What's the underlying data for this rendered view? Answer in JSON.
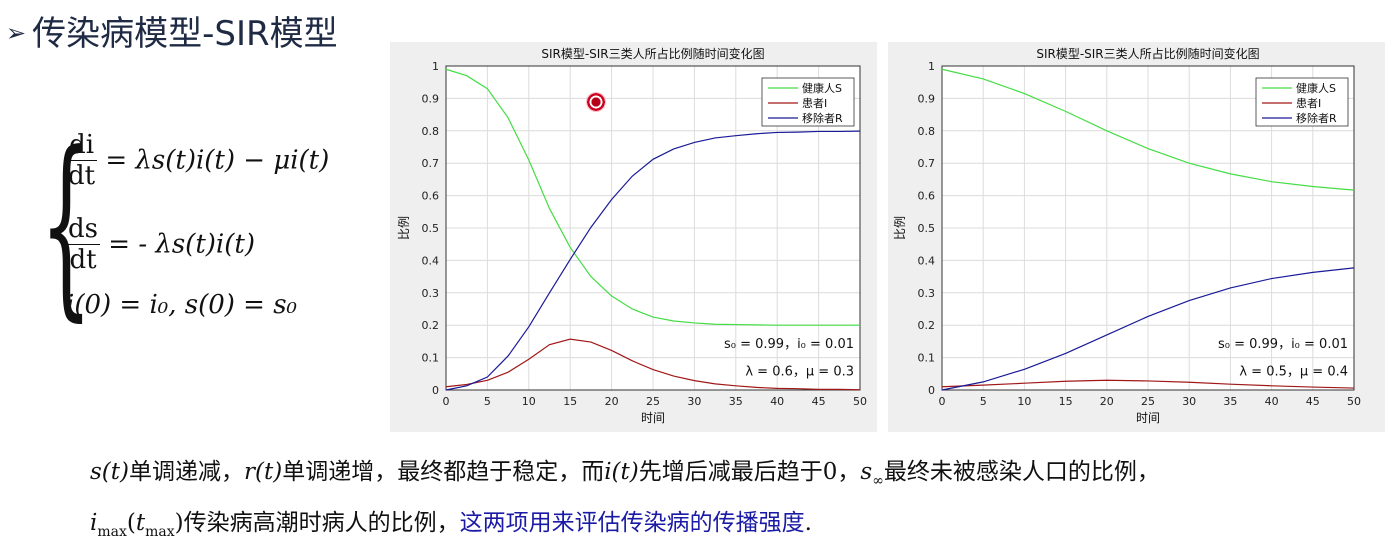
{
  "page": {
    "title": "传染病模型-SIR模型",
    "title_bullet": "➢",
    "equations": {
      "eq1_num": "di",
      "eq1_den": "dt",
      "eq1_rhs": " = λs(t)i(t) − μi(t)",
      "eq2_num": "ds",
      "eq2_den": "dt",
      "eq2_rhs": " = - λs(t)i(t)",
      "eq3": "i(0) = i₀, s(0) = s₀"
    },
    "bottom_line1": {
      "s_t": "s(t)",
      "part1": "单调递减，",
      "r_t": "r(t)",
      "part2": "单调递增，最终都趋于稳定，而",
      "i_t": "i(t)",
      "part3": "先增后减最后趋于0，",
      "s_inf": "s",
      "s_inf_sub": "∞",
      "part4": "最终未被感染人口的比例，"
    },
    "bottom_line2": {
      "i_max": "i",
      "i_max_sub": "max",
      "t_max": "t",
      "t_max_sub": "max",
      "part1": "传染病高潮时病人的比例，",
      "part2_blue": "这两项用来评估传染病的传播强度",
      "period": "."
    }
  },
  "colors": {
    "susceptible": "#44dd44",
    "infected": "#a01818",
    "removed": "#1a1a99",
    "panel_bg": "#efefef"
  },
  "chart_data": [
    {
      "type": "line",
      "title": "SIR模型-SIR三类人所占比例随时间变化图",
      "xlabel": "时间",
      "ylabel": "比例",
      "xlim": [
        0,
        50
      ],
      "ylim": [
        0,
        1
      ],
      "xticks": [
        "0",
        "5",
        "10",
        "15",
        "20",
        "25",
        "30",
        "35",
        "40",
        "45",
        "50"
      ],
      "yticks": [
        "0",
        "0.1",
        "0.2",
        "0.3",
        "0.4",
        "0.5",
        "0.6",
        "0.7",
        "0.8",
        "0.9",
        "1"
      ],
      "grid": true,
      "legend": "top-right",
      "annotation_line1": "s₀ = 0.99，i₀ = 0.01",
      "annotation_line2": "λ = 0.6，μ = 0.3",
      "x": [
        0,
        2.5,
        5,
        7.5,
        10,
        12.5,
        15,
        17.5,
        20,
        22.5,
        25,
        27.5,
        30,
        32.5,
        35,
        37.5,
        40,
        42.5,
        45,
        47.5,
        50
      ],
      "series": [
        {
          "name": "健康人S",
          "values": [
            0.99,
            0.97,
            0.93,
            0.84,
            0.71,
            0.56,
            0.44,
            0.35,
            0.29,
            0.25,
            0.225,
            0.213,
            0.207,
            0.203,
            0.202,
            0.201,
            0.2,
            0.2,
            0.2,
            0.2,
            0.2
          ]
        },
        {
          "name": "患者I",
          "values": [
            0.01,
            0.017,
            0.03,
            0.055,
            0.095,
            0.14,
            0.157,
            0.148,
            0.122,
            0.09,
            0.063,
            0.043,
            0.029,
            0.019,
            0.013,
            0.008,
            0.005,
            0.004,
            0.002,
            0.002,
            0.001
          ]
        },
        {
          "name": "移除者R",
          "values": [
            0.0,
            0.013,
            0.04,
            0.105,
            0.195,
            0.3,
            0.403,
            0.502,
            0.588,
            0.66,
            0.712,
            0.744,
            0.764,
            0.778,
            0.785,
            0.791,
            0.795,
            0.796,
            0.798,
            0.798,
            0.799
          ]
        }
      ]
    },
    {
      "type": "line",
      "title": "SIR模型-SIR三类人所占比例随时间变化图",
      "xlabel": "时间",
      "ylabel": "比例",
      "xlim": [
        0,
        50
      ],
      "ylim": [
        0,
        1
      ],
      "xticks": [
        "0",
        "5",
        "10",
        "15",
        "20",
        "25",
        "30",
        "35",
        "40",
        "45",
        "50"
      ],
      "yticks": [
        "0",
        "0.1",
        "0.2",
        "0.3",
        "0.4",
        "0.5",
        "0.6",
        "0.7",
        "0.8",
        "0.9",
        "1"
      ],
      "grid": true,
      "legend": "top-right",
      "annotation_line1": "s₀ = 0.99，i₀ = 0.01",
      "annotation_line2": "λ = 0.5，μ = 0.4",
      "x": [
        0,
        5,
        10,
        15,
        20,
        25,
        30,
        35,
        40,
        45,
        50
      ],
      "series": [
        {
          "name": "健康人S",
          "values": [
            0.99,
            0.96,
            0.915,
            0.86,
            0.8,
            0.745,
            0.7,
            0.667,
            0.643,
            0.628,
            0.617
          ]
        },
        {
          "name": "患者I",
          "values": [
            0.01,
            0.015,
            0.021,
            0.027,
            0.03,
            0.028,
            0.024,
            0.018,
            0.013,
            0.009,
            0.006
          ]
        },
        {
          "name": "移除者R",
          "values": [
            0.0,
            0.025,
            0.064,
            0.113,
            0.17,
            0.227,
            0.276,
            0.315,
            0.344,
            0.363,
            0.377
          ]
        }
      ]
    }
  ]
}
